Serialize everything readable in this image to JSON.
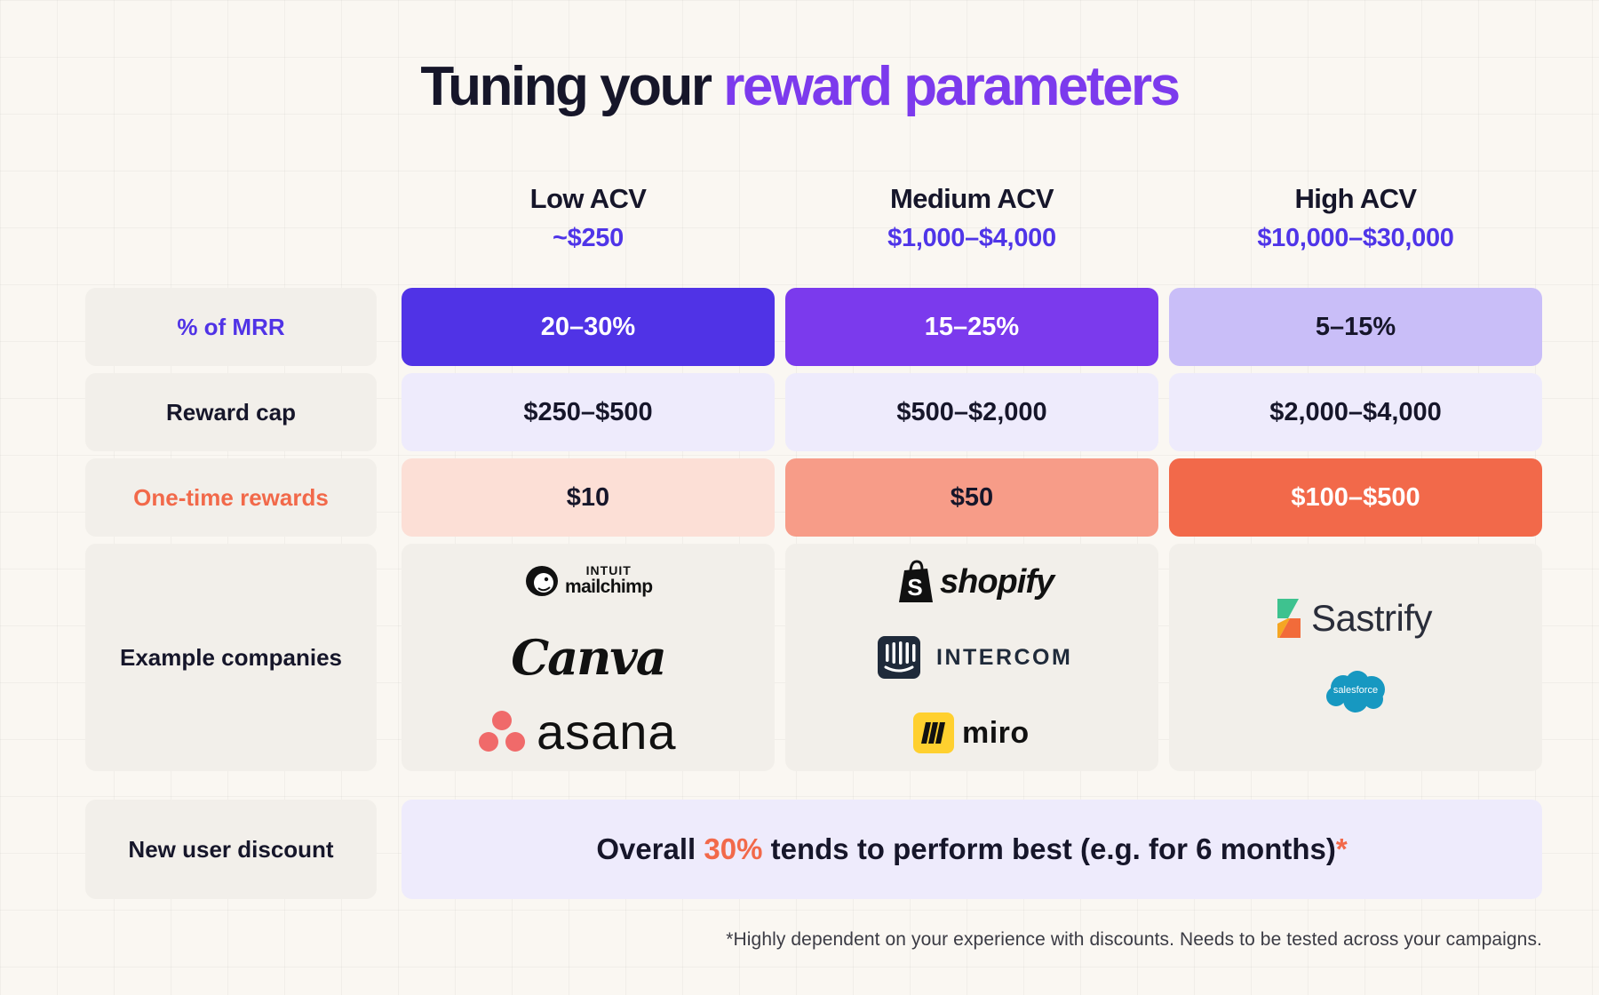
{
  "title": {
    "prefix": "Tuning your",
    "accent": "reward parameters"
  },
  "columns": [
    {
      "name": "Low ACV",
      "range": "~$250"
    },
    {
      "name": "Medium ACV",
      "range": "$1,000–$4,000"
    },
    {
      "name": "High ACV",
      "range": "$10,000–$30,000"
    }
  ],
  "rows": {
    "mrr": {
      "label": "% of MRR",
      "values": [
        "20–30%",
        "15–25%",
        "5–15%"
      ]
    },
    "cap": {
      "label": "Reward cap",
      "values": [
        "$250–$500",
        "$500–$2,000",
        "$2,000–$4,000"
      ]
    },
    "onetime": {
      "label": "One-time rewards",
      "values": [
        "$10",
        "$50",
        "$100–$500"
      ]
    },
    "companies": {
      "label": "Example companies",
      "low": {
        "mailchimp_top": "INTUIT",
        "mailchimp": "mailchimp",
        "canva": "Canva",
        "asana": "asana"
      },
      "medium": {
        "shopify": "shopify",
        "intercom": "INTERCOM",
        "miro": "miro"
      },
      "high": {
        "sastrify": "Sastrify",
        "salesforce": "salesforce"
      }
    },
    "discount": {
      "label": "New user discount",
      "text_pre": "Overall",
      "text_pct": "30%",
      "text_post": "tends to perform best (e.g. for 6 months)",
      "asterisk": "*"
    }
  },
  "footnote": "*Highly dependent on your experience with discounts. Needs to be tested across your campaigns.",
  "colors": {
    "accent_purple": "#7c3aed",
    "indigo": "#5033e6",
    "violet": "#7b3aed",
    "lavender": "#c9bef8",
    "pale_lavender": "#eeebfc",
    "coral": "#f2694a",
    "salmon": "#f79c88",
    "peach": "#fcdfd6",
    "label_bg": "#f2efea"
  }
}
